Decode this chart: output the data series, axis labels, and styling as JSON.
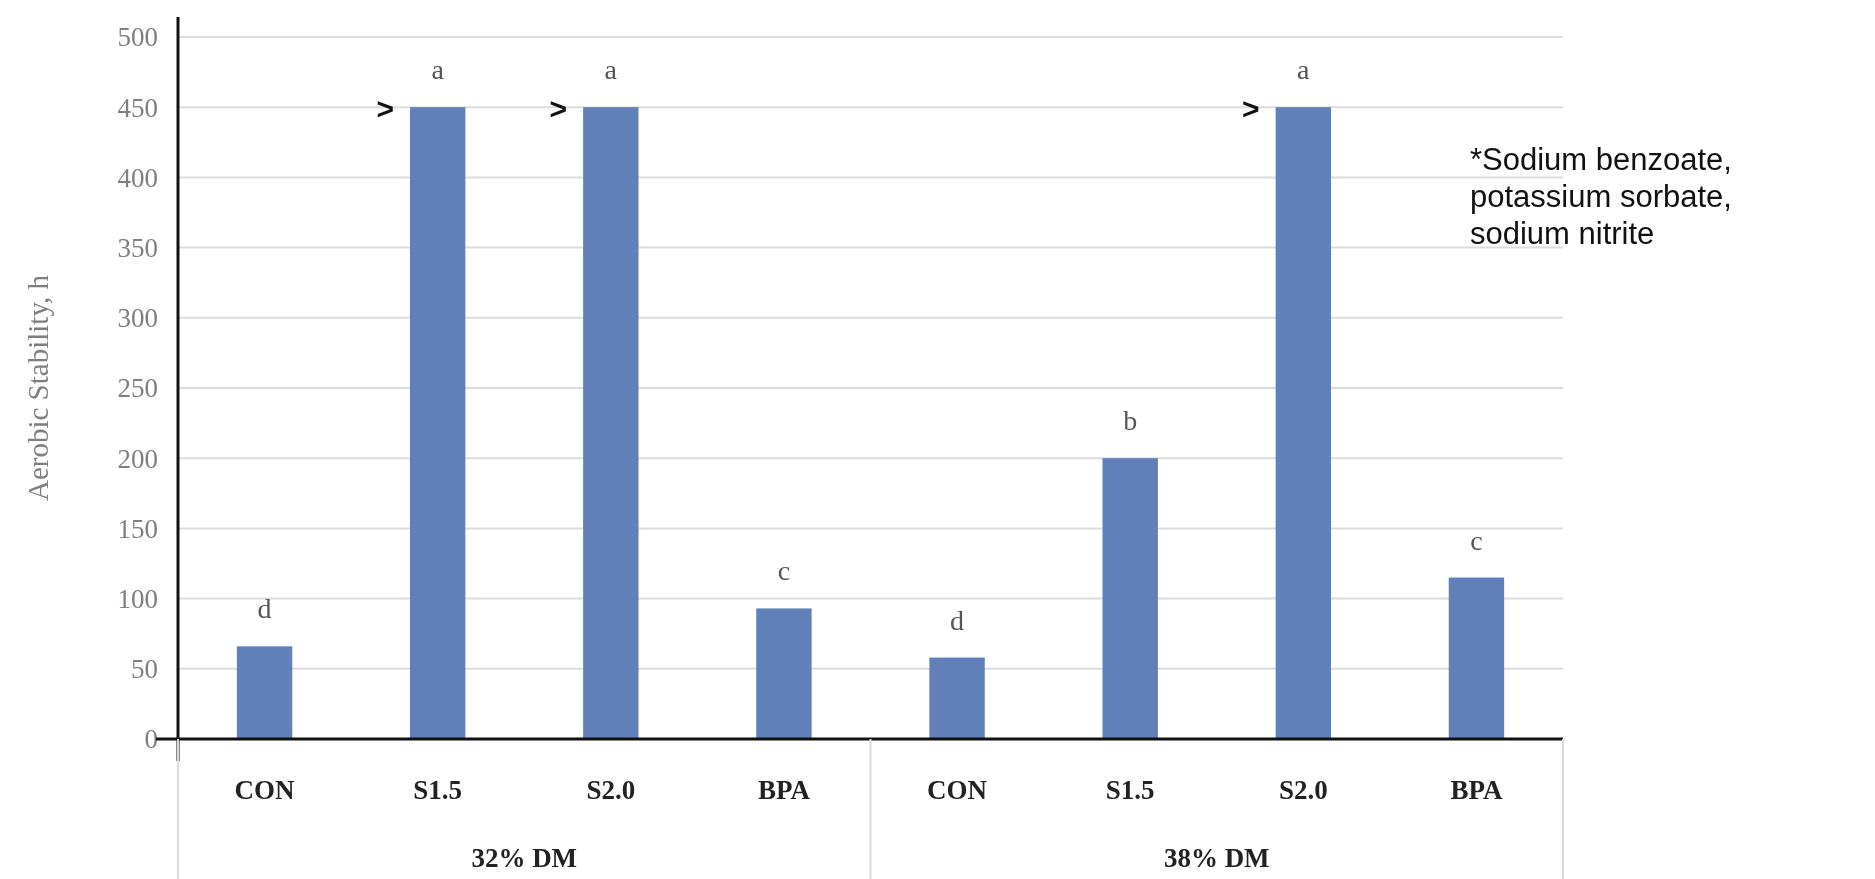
{
  "chart_data": {
    "type": "bar",
    "ylabel": "Aerobic Stability, h",
    "categories": [
      "CON",
      "S1.5",
      "S2.0",
      "BPA",
      "CON",
      "S1.5",
      "S2.0",
      "BPA"
    ],
    "values": [
      66,
      450,
      450,
      93,
      58,
      200,
      450,
      115
    ],
    "value_labels": [
      "d",
      "a",
      "a",
      "c",
      "d",
      "b",
      "a",
      "c"
    ],
    "color": "#5f80b9",
    "ylim": [
      0,
      500
    ],
    "yticks": [
      0,
      50,
      100,
      150,
      200,
      250,
      300,
      350,
      400,
      450,
      500
    ],
    "grid": "y",
    "annotations": [
      ">",
      ">",
      ">",
      "32% DM",
      "38% DM",
      "*Sodium benzoate, potassium sorbate, sodium nitrite"
    ]
  }
}
